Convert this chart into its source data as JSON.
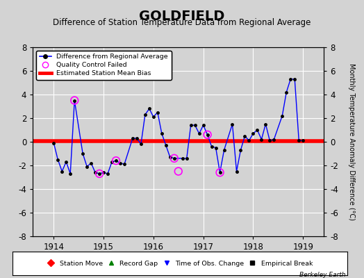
{
  "title": "GOLDFIELD",
  "subtitle": "Difference of Station Temperature Data from Regional Average",
  "ylabel_right": "Monthly Temperature Anomaly Difference (°C)",
  "background_color": "#d3d3d3",
  "plot_bg_color": "#d3d3d3",
  "xlim": [
    1913.58,
    1919.42
  ],
  "ylim": [
    -8,
    8
  ],
  "yticks": [
    -8,
    -6,
    -4,
    -2,
    0,
    2,
    4,
    6,
    8
  ],
  "xticks": [
    1914,
    1915,
    1916,
    1917,
    1918,
    1919
  ],
  "bias_line_y": 0.08,
  "x_data": [
    1914.0,
    1914.083,
    1914.167,
    1914.25,
    1914.333,
    1914.417,
    1914.583,
    1914.667,
    1914.75,
    1914.833,
    1914.917,
    1915.0,
    1915.083,
    1915.167,
    1915.25,
    1915.333,
    1915.417,
    1915.583,
    1915.667,
    1915.75,
    1915.833,
    1915.917,
    1916.0,
    1916.083,
    1916.167,
    1916.25,
    1916.333,
    1916.417,
    1916.583,
    1916.667,
    1916.75,
    1916.833,
    1916.917,
    1917.0,
    1917.083,
    1917.167,
    1917.25,
    1917.333,
    1917.417,
    1917.583,
    1917.667,
    1917.75,
    1917.833,
    1917.917,
    1918.0,
    1918.083,
    1918.167,
    1918.25,
    1918.333,
    1918.417,
    1918.583,
    1918.667,
    1918.75,
    1918.833,
    1918.917,
    1919.0
  ],
  "y_data": [
    -0.1,
    -1.5,
    -2.5,
    -1.7,
    -2.7,
    3.5,
    -1.0,
    -2.1,
    -1.8,
    -2.6,
    -2.7,
    -2.6,
    -2.7,
    -1.7,
    -1.6,
    -1.8,
    -1.9,
    0.3,
    0.3,
    -0.2,
    2.3,
    2.8,
    2.1,
    2.5,
    0.7,
    -0.3,
    -1.3,
    -1.4,
    -1.4,
    -1.4,
    1.4,
    1.4,
    0.7,
    1.4,
    0.6,
    -0.4,
    -0.5,
    -2.6,
    -0.7,
    1.5,
    -2.5,
    -0.7,
    0.5,
    0.1,
    0.7,
    1.0,
    0.2,
    1.5,
    0.1,
    0.2,
    2.2,
    4.2,
    5.3,
    5.3,
    0.1,
    0.1
  ],
  "qc_failed_x": [
    1914.417,
    1914.917,
    1915.25,
    1916.417,
    1916.5,
    1917.083,
    1917.333
  ],
  "qc_failed_y": [
    3.5,
    -2.7,
    -1.6,
    -1.4,
    -2.5,
    0.6,
    -2.6
  ],
  "line_color": "blue",
  "marker_color": "black",
  "qc_color": "magenta",
  "bias_color": "red",
  "watermark": "Berkeley Earth",
  "title_fontsize": 14,
  "subtitle_fontsize": 8.5
}
